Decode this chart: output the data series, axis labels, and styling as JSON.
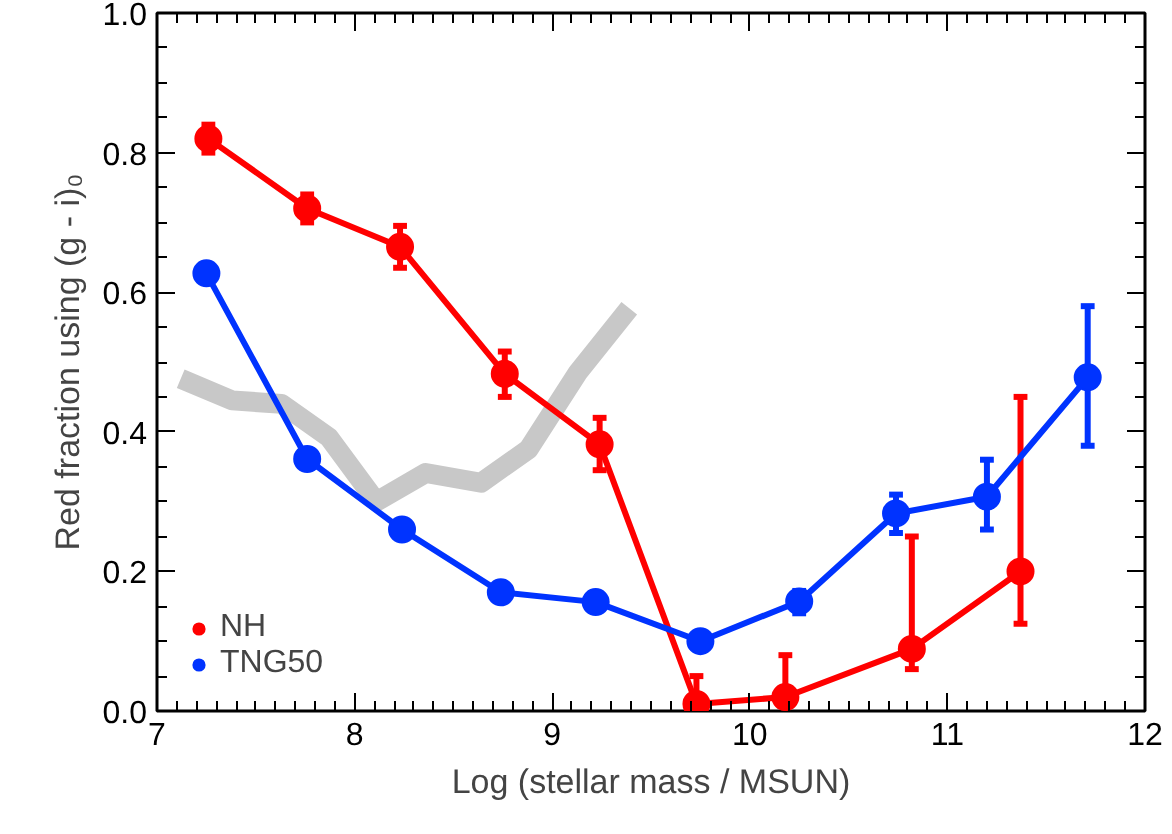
{
  "chart_data": {
    "type": "line",
    "xlabel": "Log (stellar mass / MSUN)",
    "ylabel": "Red fraction using (g - i)₀",
    "xlim": [
      7,
      12
    ],
    "ylim": [
      0,
      1
    ],
    "xticks": [
      7,
      8,
      9,
      10,
      11,
      12
    ],
    "yticks": [
      {
        "value": 0,
        "label": "0.0"
      },
      {
        "value": 0.2,
        "label": "0.2"
      },
      {
        "value": 0.4,
        "label": "0.4"
      },
      {
        "value": 0.6,
        "label": "0.6"
      },
      {
        "value": 0.8,
        "label": "0.8"
      },
      {
        "value": 1,
        "label": "1.0"
      }
    ],
    "grid": false,
    "legend": "bottom left",
    "marker": "circle",
    "line_style": "solid",
    "series": [
      {
        "type": "line",
        "marker": "none",
        "color": "#c8c8c8",
        "x": [
          7.12,
          7.38,
          7.63,
          7.87,
          8.11,
          8.36,
          8.64,
          8.88,
          9.13,
          9.39
        ],
        "values": [
          0.476,
          0.445,
          0.44,
          0.392,
          0.3,
          0.341,
          0.327,
          0.375,
          0.485,
          0.577
        ]
      },
      {
        "name": "NH",
        "color": "#ff0000",
        "x": [
          7.26,
          7.76,
          8.23,
          8.76,
          9.24,
          9.73,
          10.18,
          10.82,
          11.37
        ],
        "values": [
          0.82,
          0.72,
          0.665,
          0.483,
          0.382,
          0.01,
          0.02,
          0.089,
          0.2
        ],
        "errors": [
          [
            0.8,
            0.84
          ],
          [
            0.7,
            0.74
          ],
          [
            0.635,
            0.695
          ],
          [
            0.45,
            0.515
          ],
          [
            0.345,
            0.42
          ],
          [
            0.0,
            0.05
          ],
          [
            0.02,
            0.08
          ],
          [
            0.06,
            0.25
          ],
          [
            0.125,
            0.45
          ]
        ]
      },
      {
        "name": "TNG50",
        "color": "#0033ff",
        "x": [
          7.25,
          7.76,
          8.24,
          8.74,
          9.22,
          9.75,
          10.25,
          10.74,
          11.2,
          11.71
        ],
        "values": [
          0.627,
          0.361,
          0.26,
          0.17,
          0.156,
          0.1,
          0.157,
          0.283,
          0.307,
          0.478
        ],
        "errors": [
          null,
          null,
          null,
          null,
          null,
          null,
          [
            0.14,
            0.172
          ],
          [
            0.255,
            0.31
          ],
          [
            0.26,
            0.36
          ],
          [
            0.38,
            0.58
          ]
        ]
      }
    ]
  }
}
